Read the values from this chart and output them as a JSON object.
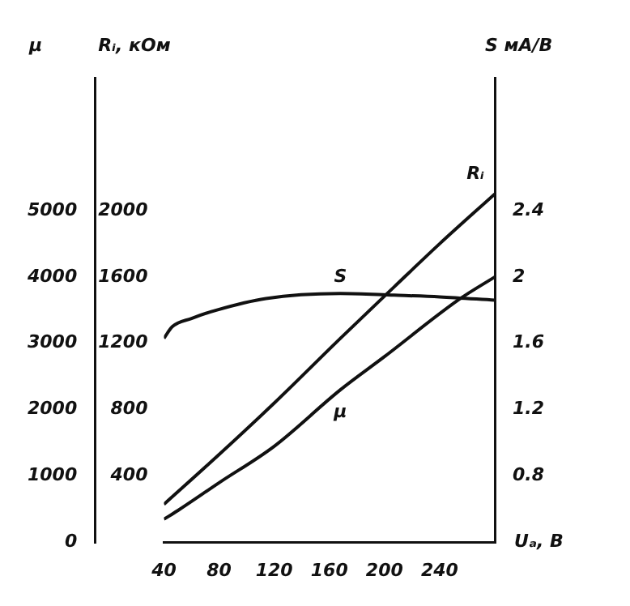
{
  "chart_data": {
    "type": "line",
    "xlabel": "Uₐ, В",
    "ylabel": "μ",
    "y2label": "Rᵢ, кОм",
    "y3label": "S мА/В",
    "xlim": [
      40,
      280
    ],
    "xticks": [
      40,
      80,
      120,
      160,
      200,
      240
    ],
    "ylim": [
      0,
      7000
    ],
    "yticks": [
      0,
      1000,
      2000,
      3000,
      4000,
      5000
    ],
    "y2lim": [
      0,
      2800
    ],
    "y2ticks": [
      400,
      800,
      1200,
      1600,
      2000
    ],
    "y3lim": [
      0.4,
      3.2
    ],
    "y3ticks": [
      0.8,
      1.2,
      1.6,
      2.0,
      2.4
    ],
    "grid": false,
    "legend": false,
    "marker": "none",
    "line_style": "solid",
    "series": [
      {
        "name": "Rᵢ",
        "color": "#111111",
        "axis": "y2",
        "x": [
          40,
          80,
          120,
          168,
          207,
          240,
          280
        ],
        "values": [
          230,
          530,
          840,
          1230,
          1540,
          1800,
          2100
        ]
      },
      {
        "name": "S",
        "color": "#111111",
        "axis": "y3",
        "x": [
          40,
          46,
          60,
          78,
          114,
          168,
          207,
          240,
          280
        ],
        "values": [
          1.63,
          1.7,
          1.75,
          1.8,
          1.87,
          1.9,
          1.89,
          1.88,
          1.86
        ]
      },
      {
        "name": "μ",
        "color": "#111111",
        "axis": "y",
        "x": [
          40,
          50,
          80,
          120,
          168,
          200,
          254,
          280
        ],
        "values": [
          350,
          480,
          900,
          1450,
          2300,
          2800,
          3660,
          4000
        ]
      }
    ]
  }
}
